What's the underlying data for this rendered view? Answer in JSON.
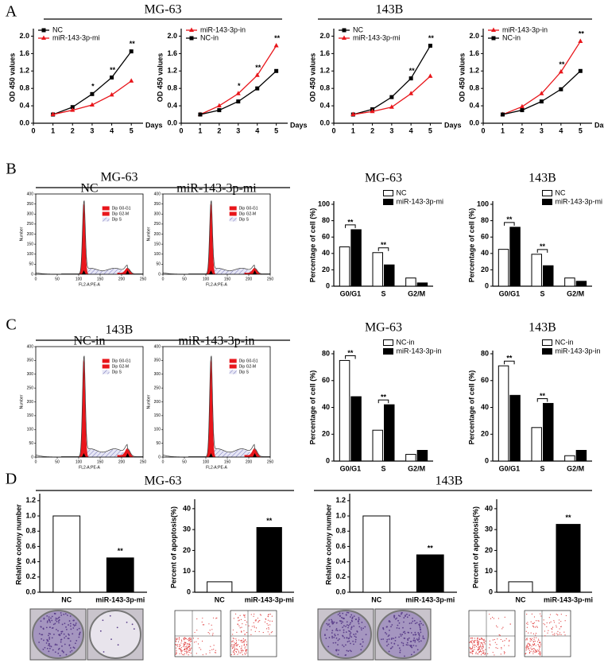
{
  "figure": {
    "panels": [
      {
        "label": "A",
        "headers": [
          "MG-63",
          "143B"
        ]
      },
      {
        "label": "B",
        "headers": [
          "MG-63"
        ]
      },
      {
        "label": "C",
        "headers": [
          "143B"
        ]
      },
      {
        "label": "D",
        "headers": [
          "MG-63",
          "143B"
        ]
      }
    ]
  },
  "chart_data": [
    {
      "type": "line",
      "ylabel": "OD 450 values",
      "xlabel": "Days",
      "x": [
        1,
        2,
        3,
        4,
        5
      ],
      "xlim": [
        0,
        5.6
      ],
      "xticks": [
        0,
        1,
        2,
        3,
        4,
        5
      ],
      "ylim": [
        0,
        2.1
      ],
      "yticks": [
        {
          "value": 0,
          "label": "0.0"
        },
        {
          "value": 0.4,
          "label": "0.4"
        },
        {
          "value": 0.8,
          "label": "0.8"
        },
        {
          "value": 1.2,
          "label": "1.2"
        },
        {
          "value": 1.6,
          "label": "1.6"
        },
        {
          "value": 2,
          "label": "2.0"
        }
      ],
      "series": [
        {
          "name": "NC",
          "color": "#000000",
          "marker": "square",
          "values": [
            0.2,
            0.37,
            0.67,
            1.05,
            1.65
          ]
        },
        {
          "name": "miR-143-3p-mi",
          "color": "#e8161b",
          "marker": "triangle",
          "values": [
            0.2,
            0.3,
            0.42,
            0.65,
            0.97
          ]
        }
      ],
      "significance": [
        null,
        null,
        "*",
        "**",
        "**"
      ]
    },
    {
      "type": "line",
      "ylabel": "OD 450 values",
      "xlabel": "Days",
      "x": [
        1,
        2,
        3,
        4,
        5
      ],
      "xlim": [
        0,
        5.6
      ],
      "xticks": [
        0,
        1,
        2,
        3,
        4,
        5
      ],
      "ylim": [
        0,
        2.1
      ],
      "yticks": [
        {
          "value": 0,
          "label": "0.0"
        },
        {
          "value": 0.4,
          "label": "0.4"
        },
        {
          "value": 0.8,
          "label": "0.8"
        },
        {
          "value": 1.2,
          "label": "1.2"
        },
        {
          "value": 1.6,
          "label": "1.6"
        },
        {
          "value": 2,
          "label": "2.0"
        }
      ],
      "series": [
        {
          "name": "miR-143-3p-in",
          "color": "#e8161b",
          "marker": "triangle",
          "values": [
            0.2,
            0.4,
            0.68,
            1.1,
            1.78
          ]
        },
        {
          "name": "NC-in",
          "color": "#000000",
          "marker": "square",
          "values": [
            0.2,
            0.3,
            0.5,
            0.8,
            1.2
          ]
        }
      ],
      "significance": [
        null,
        null,
        "*",
        "**",
        "**"
      ]
    },
    {
      "type": "line",
      "ylabel": "OD 450 values",
      "xlabel": "Days",
      "x": [
        1,
        2,
        3,
        4,
        5
      ],
      "xlim": [
        0,
        5.6
      ],
      "xticks": [
        0,
        1,
        2,
        3,
        4,
        5
      ],
      "ylim": [
        0,
        2.1
      ],
      "yticks": [
        {
          "value": 0,
          "label": "0.0"
        },
        {
          "value": 0.4,
          "label": "0.4"
        },
        {
          "value": 0.8,
          "label": "0.8"
        },
        {
          "value": 1.2,
          "label": "1.2"
        },
        {
          "value": 1.6,
          "label": "1.6"
        },
        {
          "value": 2,
          "label": "2.0"
        }
      ],
      "series": [
        {
          "name": "NC",
          "color": "#000000",
          "marker": "square",
          "values": [
            0.2,
            0.32,
            0.6,
            1.03,
            1.78
          ]
        },
        {
          "name": "miR-143-3p-mi",
          "color": "#e8161b",
          "marker": "triangle",
          "values": [
            0.2,
            0.27,
            0.37,
            0.68,
            1.08
          ]
        }
      ],
      "significance": [
        null,
        null,
        null,
        "**",
        "**"
      ]
    },
    {
      "type": "line",
      "ylabel": "OD 450 values",
      "xlabel": "Days",
      "x": [
        1,
        2,
        3,
        4,
        5
      ],
      "xlim": [
        0,
        5.6
      ],
      "xticks": [
        0,
        1,
        2,
        3,
        4,
        5
      ],
      "ylim": [
        0,
        2.1
      ],
      "yticks": [
        {
          "value": 0,
          "label": "0.0"
        },
        {
          "value": 0.4,
          "label": "0.4"
        },
        {
          "value": 0.8,
          "label": "0.8"
        },
        {
          "value": 1.2,
          "label": "1.2"
        },
        {
          "value": 1.6,
          "label": "1.6"
        },
        {
          "value": 2,
          "label": "2.0"
        }
      ],
      "series": [
        {
          "name": "miR-143-3p-in",
          "color": "#e8161b",
          "marker": "triangle",
          "values": [
            0.2,
            0.38,
            0.68,
            1.18,
            1.88
          ]
        },
        {
          "name": "NC-in",
          "color": "#000000",
          "marker": "square",
          "values": [
            0.2,
            0.3,
            0.5,
            0.78,
            1.2
          ]
        }
      ],
      "significance": [
        null,
        null,
        null,
        "**",
        "**"
      ]
    },
    {
      "type": "flow",
      "title": "NC",
      "xlabel": "FL2-A:PE-A",
      "ylabel": "Number",
      "xlim": [
        0,
        250
      ],
      "xticks": [
        0,
        50,
        100,
        150,
        200,
        250
      ],
      "ylim": [
        0,
        400
      ],
      "yticks": [
        0,
        50,
        100,
        150,
        200,
        250,
        300,
        350,
        400
      ],
      "legend": [
        {
          "name": "Dip G0-G1",
          "color": "#e8161b"
        },
        {
          "name": "Dip G2-M",
          "color": "#e8161b"
        },
        {
          "name": "Dip S",
          "color": "#8888cc"
        }
      ]
    },
    {
      "type": "flow",
      "title": "miR-143-3p-mi",
      "xlabel": "FL2-A:PE-A",
      "ylabel": "Number",
      "xlim": [
        0,
        250
      ],
      "xticks": [
        0,
        50,
        100,
        150,
        200,
        250
      ],
      "ylim": [
        0,
        400
      ],
      "yticks": [
        0,
        50,
        100,
        150,
        200,
        250,
        300,
        350,
        400
      ],
      "legend": [
        {
          "name": "Dip G0-G1",
          "color": "#e8161b"
        },
        {
          "name": "Dip G2-M",
          "color": "#e8161b"
        },
        {
          "name": "Dip S",
          "color": "#8888cc"
        }
      ]
    },
    {
      "type": "bar",
      "title": "MG-63",
      "ylabel": "Percentage of cell (%)",
      "categories": [
        "G0/G1",
        "S",
        "G2/M"
      ],
      "ylim": [
        0,
        100
      ],
      "yticks": [
        0,
        20,
        40,
        60,
        80,
        100
      ],
      "series": [
        {
          "name": "NC",
          "color": "#ffffff",
          "values": [
            48,
            41,
            10
          ]
        },
        {
          "name": "miR-143-3p-mi",
          "color": "#000000",
          "values": [
            69,
            26,
            4
          ]
        }
      ],
      "significance": [
        "**",
        "**",
        null
      ]
    },
    {
      "type": "bar",
      "title": "143B",
      "ylabel": "Percentage of cell (%)",
      "categories": [
        "G0/G1",
        "S",
        "G2/M"
      ],
      "ylim": [
        0,
        100
      ],
      "yticks": [
        0,
        20,
        40,
        60,
        80,
        100
      ],
      "series": [
        {
          "name": "NC",
          "color": "#ffffff",
          "values": [
            45,
            39,
            10
          ]
        },
        {
          "name": "miR-143-3p-mi",
          "color": "#000000",
          "values": [
            72,
            25,
            6
          ]
        }
      ],
      "significance": [
        "**",
        "**",
        null
      ]
    },
    {
      "type": "flow",
      "title": "NC-in",
      "xlabel": "FL2-A:PE-A",
      "ylabel": "Number",
      "xlim": [
        0,
        250
      ],
      "xticks": [
        0,
        50,
        100,
        150,
        200,
        250
      ],
      "ylim": [
        0,
        400
      ],
      "yticks": [
        0,
        50,
        100,
        150,
        200,
        250,
        300,
        350,
        400
      ],
      "legend": [
        {
          "name": "Dip G0-G1",
          "color": "#e8161b"
        },
        {
          "name": "Dip G2-M",
          "color": "#e8161b"
        },
        {
          "name": "Dip S",
          "color": "#8888cc"
        }
      ]
    },
    {
      "type": "flow",
      "title": "miR-143-3p-in",
      "xlabel": "FL2-A:PE-A",
      "ylabel": "Number",
      "xlim": [
        0,
        250
      ],
      "xticks": [
        0,
        50,
        100,
        150,
        200,
        250
      ],
      "ylim": [
        0,
        400
      ],
      "yticks": [
        0,
        50,
        100,
        150,
        200,
        250,
        300,
        350,
        400
      ],
      "legend": [
        {
          "name": "Dip G0-G1",
          "color": "#e8161b"
        },
        {
          "name": "Dip G2-M",
          "color": "#e8161b"
        },
        {
          "name": "Dip S",
          "color": "#8888cc"
        }
      ]
    },
    {
      "type": "bar",
      "title": "MG-63",
      "ylabel": "Percentage of cell (%)",
      "categories": [
        "G0/G1",
        "S",
        "G2/M"
      ],
      "ylim": [
        0,
        80
      ],
      "yticks": [
        0,
        20,
        40,
        60,
        80
      ],
      "series": [
        {
          "name": "NC-in",
          "color": "#ffffff",
          "values": [
            75,
            23,
            5
          ]
        },
        {
          "name": "miR-143-3p-in",
          "color": "#000000",
          "values": [
            48,
            42,
            8
          ]
        }
      ],
      "significance": [
        "**",
        "**",
        null
      ]
    },
    {
      "type": "bar",
      "title": "143B",
      "ylabel": "Percentage of cell (%)",
      "categories": [
        "G0/G1",
        "S",
        "G2/M"
      ],
      "ylim": [
        0,
        80
      ],
      "yticks": [
        0,
        20,
        40,
        60,
        80
      ],
      "series": [
        {
          "name": "NC-in",
          "color": "#ffffff",
          "values": [
            71,
            25,
            4
          ]
        },
        {
          "name": "miR-143-3p-in",
          "color": "#000000",
          "values": [
            49,
            43,
            8
          ]
        }
      ],
      "significance": [
        "**",
        "**",
        null
      ]
    },
    {
      "type": "bar",
      "ylabel": "Relative  colony number",
      "categories": [
        "NC",
        "miR-143-3p-mi"
      ],
      "values": [
        1.0,
        0.45
      ],
      "colors": [
        "#ffffff",
        "#000000"
      ],
      "ylim": [
        0,
        1.25
      ],
      "yticks": [
        {
          "value": 0,
          "label": "0.0"
        },
        {
          "value": 0.2,
          "label": "0.2"
        },
        {
          "value": 0.4,
          "label": "0.4"
        },
        {
          "value": 0.6,
          "label": "0.6"
        },
        {
          "value": 0.8,
          "label": "0.8"
        },
        {
          "value": 1,
          "label": "1.0"
        },
        {
          "value": 1.2,
          "label": "1.2"
        }
      ],
      "significance": [
        null,
        "**"
      ]
    },
    {
      "type": "bar",
      "ylabel": "Percent of apoptosis(%)",
      "categories": [
        "NC",
        "miR-143-3p-mi"
      ],
      "values": [
        5,
        31
      ],
      "colors": [
        "#ffffff",
        "#000000"
      ],
      "ylim": [
        0,
        43
      ],
      "yticks": [
        0,
        10,
        20,
        30,
        40
      ],
      "significance": [
        null,
        "**"
      ]
    },
    {
      "type": "bar",
      "ylabel": "Relative  colony number",
      "categories": [
        "NC",
        "miR-143-3p-mi"
      ],
      "values": [
        1.0,
        0.49
      ],
      "colors": [
        "#ffffff",
        "#000000"
      ],
      "ylim": [
        0,
        1.25
      ],
      "yticks": [
        {
          "value": 0,
          "label": "0.0"
        },
        {
          "value": 0.2,
          "label": "0.2"
        },
        {
          "value": 0.4,
          "label": "0.4"
        },
        {
          "value": 0.6,
          "label": "0.6"
        },
        {
          "value": 0.8,
          "label": "0.8"
        },
        {
          "value": 1,
          "label": "1.0"
        },
        {
          "value": 1.2,
          "label": "1.2"
        }
      ],
      "significance": [
        null,
        "**"
      ]
    },
    {
      "type": "bar",
      "ylabel": "Percent of apoptosis(%)",
      "categories": [
        "NC",
        "miR-143-3p-mi"
      ],
      "values": [
        5,
        32.5
      ],
      "colors": [
        "#ffffff",
        "#000000"
      ],
      "ylim": [
        0,
        43
      ],
      "yticks": [
        0,
        10,
        20,
        30,
        40
      ],
      "significance": [
        null,
        "**"
      ]
    }
  ]
}
